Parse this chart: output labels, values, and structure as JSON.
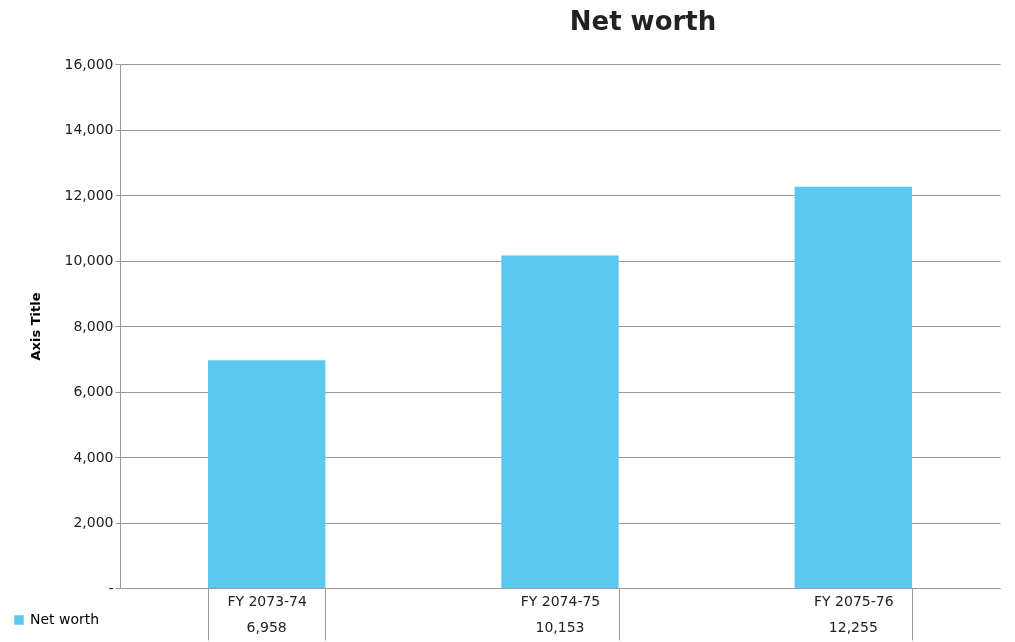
{
  "chart_data": {
    "type": "bar",
    "title": "Net worth",
    "ylabel": "Axis Title",
    "categories": [
      "FY 2073-74",
      "FY 2074-75",
      "FY 2075-76"
    ],
    "series": [
      {
        "name": "Net worth",
        "color": "#5bc9ee",
        "values": [
          6958,
          10153,
          12255
        ],
        "value_labels": [
          "6,958",
          "10,153",
          "12,255"
        ]
      }
    ],
    "ylim": [
      0,
      16000
    ],
    "yticks": [
      {
        "value": 0,
        "label": "-"
      },
      {
        "value": 2000,
        "label": "2,000"
      },
      {
        "value": 4000,
        "label": "4,000"
      },
      {
        "value": 6000,
        "label": "6,000"
      },
      {
        "value": 8000,
        "label": "8,000"
      },
      {
        "value": 10000,
        "label": "10,000"
      },
      {
        "value": 12000,
        "label": "12,000"
      },
      {
        "value": 14000,
        "label": "14,000"
      },
      {
        "value": 16000,
        "label": "16,000"
      }
    ],
    "grid": "y",
    "legend": "bottom"
  }
}
